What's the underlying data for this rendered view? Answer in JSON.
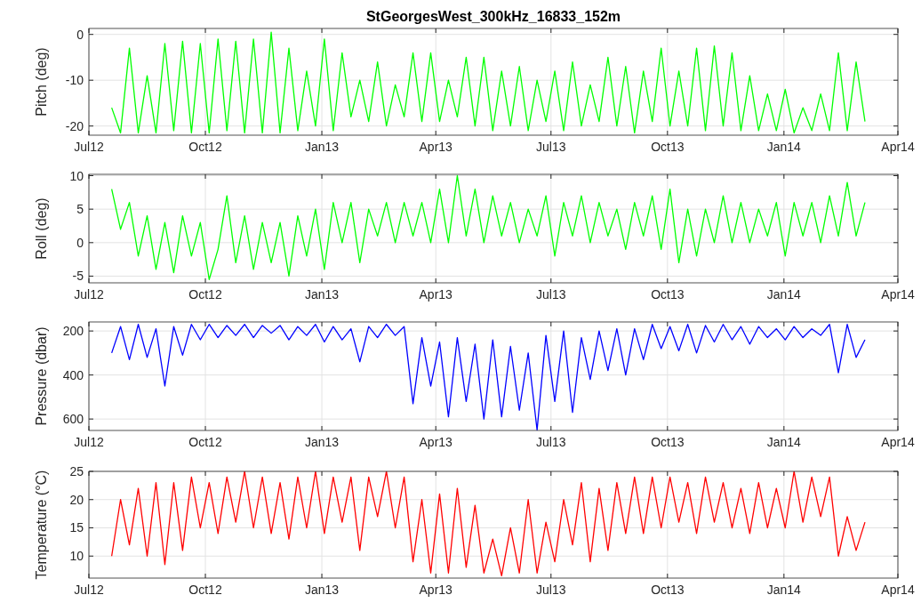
{
  "chart_data": [
    {
      "type": "line",
      "title": "StGeorgesWest_300kHz_16833_152m",
      "ylabel": "Pitch (deg)",
      "grid": true,
      "x": [
        "2012-07-19",
        "2012-07-26",
        "2012-08-02",
        "2012-08-09",
        "2012-08-16",
        "2012-08-23",
        "2012-08-30",
        "2012-09-06",
        "2012-09-13",
        "2012-09-20",
        "2012-09-27",
        "2012-10-04",
        "2012-10-11",
        "2012-10-18",
        "2012-10-25",
        "2012-11-01",
        "2012-11-08",
        "2012-11-15",
        "2012-11-22",
        "2012-11-29",
        "2012-12-06",
        "2012-12-13",
        "2012-12-20",
        "2012-12-27",
        "2013-01-03",
        "2013-01-10",
        "2013-01-17",
        "2013-01-24",
        "2013-01-31",
        "2013-02-07",
        "2013-02-14",
        "2013-02-21",
        "2013-02-28",
        "2013-03-07",
        "2013-03-14",
        "2013-03-21",
        "2013-03-28",
        "2013-04-04",
        "2013-04-11",
        "2013-04-18",
        "2013-04-25",
        "2013-05-02",
        "2013-05-09",
        "2013-05-16",
        "2013-05-23",
        "2013-05-30",
        "2013-06-06",
        "2013-06-13",
        "2013-06-20",
        "2013-06-27",
        "2013-07-04",
        "2013-07-11",
        "2013-07-18",
        "2013-07-25",
        "2013-08-01",
        "2013-08-08",
        "2013-08-15",
        "2013-08-22",
        "2013-08-29",
        "2013-09-05",
        "2013-09-12",
        "2013-09-19",
        "2013-09-26",
        "2013-10-03",
        "2013-10-10",
        "2013-10-17",
        "2013-10-24",
        "2013-10-31",
        "2013-11-07",
        "2013-11-14",
        "2013-11-21",
        "2013-11-28",
        "2013-12-05",
        "2013-12-12",
        "2013-12-19",
        "2013-12-26",
        "2014-01-02",
        "2014-01-09",
        "2014-01-16",
        "2014-01-23",
        "2014-01-30",
        "2014-02-06",
        "2014-02-13",
        "2014-02-20",
        "2014-02-27",
        "2014-03-06"
      ],
      "series": [
        {
          "color": "#00ff00",
          "values": [
            -16,
            -21.5,
            -3,
            -21.5,
            -9,
            -21.5,
            -2,
            -21,
            -1.5,
            -21.5,
            -2,
            -21.5,
            -1,
            -21,
            -1.5,
            -21.5,
            -1,
            -21.5,
            0.5,
            -21.5,
            -3,
            -21,
            -8,
            -20,
            -1,
            -21,
            -4,
            -18,
            -10,
            -19,
            -6,
            -20,
            -11,
            -18,
            -4,
            -19,
            -4,
            -19,
            -10,
            -18,
            -5,
            -20,
            -5,
            -21,
            -8,
            -20,
            -7,
            -21,
            -10,
            -19,
            -8,
            -21,
            -6,
            -20,
            -11,
            -19,
            -5,
            -20,
            -7,
            -21.5,
            -8,
            -19,
            -3,
            -20,
            -8,
            -20,
            -3,
            -21,
            -2.5,
            -20,
            -4,
            -21,
            -9,
            -21,
            -13,
            -21,
            -12,
            -21.5,
            -16,
            -21,
            -13,
            -21,
            -4,
            -21,
            -6,
            -19
          ]
        }
      ],
      "xlim": [
        "2012-07-01",
        "2014-04-01"
      ],
      "xticks": [
        {
          "value": "2012-07-01",
          "label": "Jul12"
        },
        {
          "value": "2012-10-01",
          "label": "Oct12"
        },
        {
          "value": "2013-01-01",
          "label": "Jan13"
        },
        {
          "value": "2013-04-01",
          "label": "Apr13"
        },
        {
          "value": "2013-07-01",
          "label": "Jul13"
        },
        {
          "value": "2013-10-01",
          "label": "Oct13"
        },
        {
          "value": "2014-01-01",
          "label": "Jan14"
        },
        {
          "value": "2014-04-01",
          "label": "Apr14"
        }
      ],
      "ylim": [
        -22,
        1.3
      ],
      "yticks": [
        -20,
        -10,
        0
      ]
    },
    {
      "type": "line",
      "ylabel": "Roll (deg)",
      "grid": true,
      "x": [
        "2012-07-19",
        "2012-07-26",
        "2012-08-02",
        "2012-08-09",
        "2012-08-16",
        "2012-08-23",
        "2012-08-30",
        "2012-09-06",
        "2012-09-13",
        "2012-09-20",
        "2012-09-27",
        "2012-10-04",
        "2012-10-11",
        "2012-10-18",
        "2012-10-25",
        "2012-11-01",
        "2012-11-08",
        "2012-11-15",
        "2012-11-22",
        "2012-11-29",
        "2012-12-06",
        "2012-12-13",
        "2012-12-20",
        "2012-12-27",
        "2013-01-03",
        "2013-01-10",
        "2013-01-17",
        "2013-01-24",
        "2013-01-31",
        "2013-02-07",
        "2013-02-14",
        "2013-02-21",
        "2013-02-28",
        "2013-03-07",
        "2013-03-14",
        "2013-03-21",
        "2013-03-28",
        "2013-04-04",
        "2013-04-11",
        "2013-04-18",
        "2013-04-25",
        "2013-05-02",
        "2013-05-09",
        "2013-05-16",
        "2013-05-23",
        "2013-05-30",
        "2013-06-06",
        "2013-06-13",
        "2013-06-20",
        "2013-06-27",
        "2013-07-04",
        "2013-07-11",
        "2013-07-18",
        "2013-07-25",
        "2013-08-01",
        "2013-08-08",
        "2013-08-15",
        "2013-08-22",
        "2013-08-29",
        "2013-09-05",
        "2013-09-12",
        "2013-09-19",
        "2013-09-26",
        "2013-10-03",
        "2013-10-10",
        "2013-10-17",
        "2013-10-24",
        "2013-10-31",
        "2013-11-07",
        "2013-11-14",
        "2013-11-21",
        "2013-11-28",
        "2013-12-05",
        "2013-12-12",
        "2013-12-19",
        "2013-12-26",
        "2014-01-02",
        "2014-01-09",
        "2014-01-16",
        "2014-01-23",
        "2014-01-30",
        "2014-02-06",
        "2014-02-13",
        "2014-02-20",
        "2014-02-27",
        "2014-03-06"
      ],
      "series": [
        {
          "color": "#00ff00",
          "values": [
            8,
            2,
            6,
            -2,
            4,
            -4,
            3,
            -4.5,
            4,
            -2,
            3,
            -5.5,
            -1,
            7,
            -3,
            4,
            -4,
            3,
            -3,
            3,
            -5,
            4,
            -2,
            5,
            -4,
            6,
            0,
            6,
            -3,
            5,
            1,
            6,
            0,
            6,
            1,
            6,
            0,
            8,
            0,
            10,
            1,
            8,
            0,
            7,
            1,
            6,
            0,
            5,
            1,
            7,
            -2,
            6,
            1,
            7,
            0,
            6,
            1,
            5,
            -1,
            6,
            1,
            7,
            -1,
            8,
            -3,
            5,
            -2,
            5,
            0,
            7,
            0,
            6,
            0,
            5,
            1,
            6,
            -2,
            6,
            1,
            6,
            0,
            7,
            1,
            9,
            1,
            6
          ]
        }
      ],
      "xlim": [
        "2012-07-01",
        "2014-04-01"
      ],
      "xticks": [
        {
          "value": "2012-07-01",
          "label": "Jul12"
        },
        {
          "value": "2012-10-01",
          "label": "Oct12"
        },
        {
          "value": "2013-01-01",
          "label": "Jan13"
        },
        {
          "value": "2013-04-01",
          "label": "Apr13"
        },
        {
          "value": "2013-07-01",
          "label": "Jul13"
        },
        {
          "value": "2013-10-01",
          "label": "Oct13"
        },
        {
          "value": "2014-01-01",
          "label": "Jan14"
        },
        {
          "value": "2014-04-01",
          "label": "Apr14"
        }
      ],
      "ylim": [
        -6,
        10.2
      ],
      "yticks": [
        -5,
        0,
        5,
        10
      ]
    },
    {
      "type": "line",
      "ylabel": "Pressure (dbar)",
      "grid": true,
      "x": [
        "2012-07-19",
        "2012-07-26",
        "2012-08-02",
        "2012-08-09",
        "2012-08-16",
        "2012-08-23",
        "2012-08-30",
        "2012-09-06",
        "2012-09-13",
        "2012-09-20",
        "2012-09-27",
        "2012-10-04",
        "2012-10-11",
        "2012-10-18",
        "2012-10-25",
        "2012-11-01",
        "2012-11-08",
        "2012-11-15",
        "2012-11-22",
        "2012-11-29",
        "2012-12-06",
        "2012-12-13",
        "2012-12-20",
        "2012-12-27",
        "2013-01-03",
        "2013-01-10",
        "2013-01-17",
        "2013-01-24",
        "2013-01-31",
        "2013-02-07",
        "2013-02-14",
        "2013-02-21",
        "2013-02-28",
        "2013-03-07",
        "2013-03-14",
        "2013-03-21",
        "2013-03-28",
        "2013-04-04",
        "2013-04-11",
        "2013-04-18",
        "2013-04-25",
        "2013-05-02",
        "2013-05-09",
        "2013-05-16",
        "2013-05-23",
        "2013-05-30",
        "2013-06-06",
        "2013-06-13",
        "2013-06-20",
        "2013-06-27",
        "2013-07-04",
        "2013-07-11",
        "2013-07-18",
        "2013-07-25",
        "2013-08-01",
        "2013-08-08",
        "2013-08-15",
        "2013-08-22",
        "2013-08-29",
        "2013-09-05",
        "2013-09-12",
        "2013-09-19",
        "2013-09-26",
        "2013-10-03",
        "2013-10-10",
        "2013-10-17",
        "2013-10-24",
        "2013-10-31",
        "2013-11-07",
        "2013-11-14",
        "2013-11-21",
        "2013-11-28",
        "2013-12-05",
        "2013-12-12",
        "2013-12-19",
        "2013-12-26",
        "2014-01-02",
        "2014-01-09",
        "2014-01-16",
        "2014-01-23",
        "2014-01-30",
        "2014-02-06",
        "2014-02-13",
        "2014-02-20",
        "2014-02-27",
        "2014-03-06"
      ],
      "series": [
        {
          "color": "#0000ff",
          "values": [
            300,
            180,
            330,
            170,
            320,
            190,
            450,
            180,
            310,
            170,
            240,
            170,
            230,
            175,
            220,
            170,
            230,
            175,
            210,
            175,
            240,
            180,
            220,
            170,
            250,
            180,
            240,
            190,
            340,
            180,
            230,
            170,
            220,
            180,
            530,
            230,
            450,
            250,
            590,
            230,
            520,
            260,
            600,
            240,
            590,
            270,
            560,
            300,
            650,
            220,
            520,
            200,
            570,
            230,
            420,
            200,
            380,
            190,
            400,
            190,
            330,
            170,
            280,
            180,
            290,
            170,
            300,
            175,
            250,
            170,
            240,
            180,
            260,
            180,
            230,
            190,
            240,
            180,
            230,
            190,
            220,
            170,
            390,
            170,
            320,
            240
          ]
        }
      ],
      "xlim": [
        "2012-07-01",
        "2014-04-01"
      ],
      "xticks": [
        {
          "value": "2012-07-01",
          "label": "Jul12"
        },
        {
          "value": "2012-10-01",
          "label": "Oct12"
        },
        {
          "value": "2013-01-01",
          "label": "Jan13"
        },
        {
          "value": "2013-04-01",
          "label": "Apr13"
        },
        {
          "value": "2013-07-01",
          "label": "Jul13"
        },
        {
          "value": "2013-10-01",
          "label": "Oct13"
        },
        {
          "value": "2014-01-01",
          "label": "Jan14"
        },
        {
          "value": "2014-04-01",
          "label": "Apr14"
        }
      ],
      "ylim": [
        652,
        159
      ],
      "yticks": [
        200,
        400,
        600
      ]
    },
    {
      "type": "line",
      "ylabel": "Temperature (°C)",
      "grid": true,
      "x": [
        "2012-07-19",
        "2012-07-26",
        "2012-08-02",
        "2012-08-09",
        "2012-08-16",
        "2012-08-23",
        "2012-08-30",
        "2012-09-06",
        "2012-09-13",
        "2012-09-20",
        "2012-09-27",
        "2012-10-04",
        "2012-10-11",
        "2012-10-18",
        "2012-10-25",
        "2012-11-01",
        "2012-11-08",
        "2012-11-15",
        "2012-11-22",
        "2012-11-29",
        "2012-12-06",
        "2012-12-13",
        "2012-12-20",
        "2012-12-27",
        "2013-01-03",
        "2013-01-10",
        "2013-01-17",
        "2013-01-24",
        "2013-01-31",
        "2013-02-07",
        "2013-02-14",
        "2013-02-21",
        "2013-02-28",
        "2013-03-07",
        "2013-03-14",
        "2013-03-21",
        "2013-03-28",
        "2013-04-04",
        "2013-04-11",
        "2013-04-18",
        "2013-04-25",
        "2013-05-02",
        "2013-05-09",
        "2013-05-16",
        "2013-05-23",
        "2013-05-30",
        "2013-06-06",
        "2013-06-13",
        "2013-06-20",
        "2013-06-27",
        "2013-07-04",
        "2013-07-11",
        "2013-07-18",
        "2013-07-25",
        "2013-08-01",
        "2013-08-08",
        "2013-08-15",
        "2013-08-22",
        "2013-08-29",
        "2013-09-05",
        "2013-09-12",
        "2013-09-19",
        "2013-09-26",
        "2013-10-03",
        "2013-10-10",
        "2013-10-17",
        "2013-10-24",
        "2013-10-31",
        "2013-11-07",
        "2013-11-14",
        "2013-11-21",
        "2013-11-28",
        "2013-12-05",
        "2013-12-12",
        "2013-12-19",
        "2013-12-26",
        "2014-01-02",
        "2014-01-09",
        "2014-01-16",
        "2014-01-23",
        "2014-01-30",
        "2014-02-06",
        "2014-02-13",
        "2014-02-20",
        "2014-02-27",
        "2014-03-06"
      ],
      "series": [
        {
          "color": "#ff0000",
          "values": [
            10,
            20,
            12,
            22,
            10,
            23,
            8.5,
            23,
            11,
            24,
            15,
            23,
            14,
            24,
            16,
            25,
            15,
            24,
            14,
            23,
            13,
            24,
            15,
            25,
            14,
            24,
            16,
            24,
            11,
            24,
            17,
            25,
            15,
            24,
            9,
            20,
            7,
            21,
            7,
            22,
            8,
            19,
            7,
            13,
            6.5,
            15,
            7,
            20,
            7,
            16,
            9,
            20,
            12,
            23,
            9,
            22,
            11,
            23,
            14,
            24,
            14,
            24,
            15,
            24,
            16,
            23,
            14,
            24,
            16,
            23,
            15,
            22,
            14,
            23,
            15,
            22,
            15,
            25,
            16,
            24,
            17,
            24,
            10,
            17,
            11,
            16
          ]
        }
      ],
      "xlim": [
        "2012-07-01",
        "2014-04-01"
      ],
      "xticks": [
        {
          "value": "2012-07-01",
          "label": "Jul12"
        },
        {
          "value": "2012-10-01",
          "label": "Oct12"
        },
        {
          "value": "2013-01-01",
          "label": "Jan13"
        },
        {
          "value": "2013-04-01",
          "label": "Apr13"
        },
        {
          "value": "2013-07-01",
          "label": "Jul13"
        },
        {
          "value": "2013-10-01",
          "label": "Oct13"
        },
        {
          "value": "2014-01-01",
          "label": "Jan14"
        },
        {
          "value": "2014-04-01",
          "label": "Apr14"
        }
      ],
      "ylim": [
        6.1,
        25
      ],
      "yticks": [
        10,
        15,
        20,
        25
      ]
    }
  ]
}
